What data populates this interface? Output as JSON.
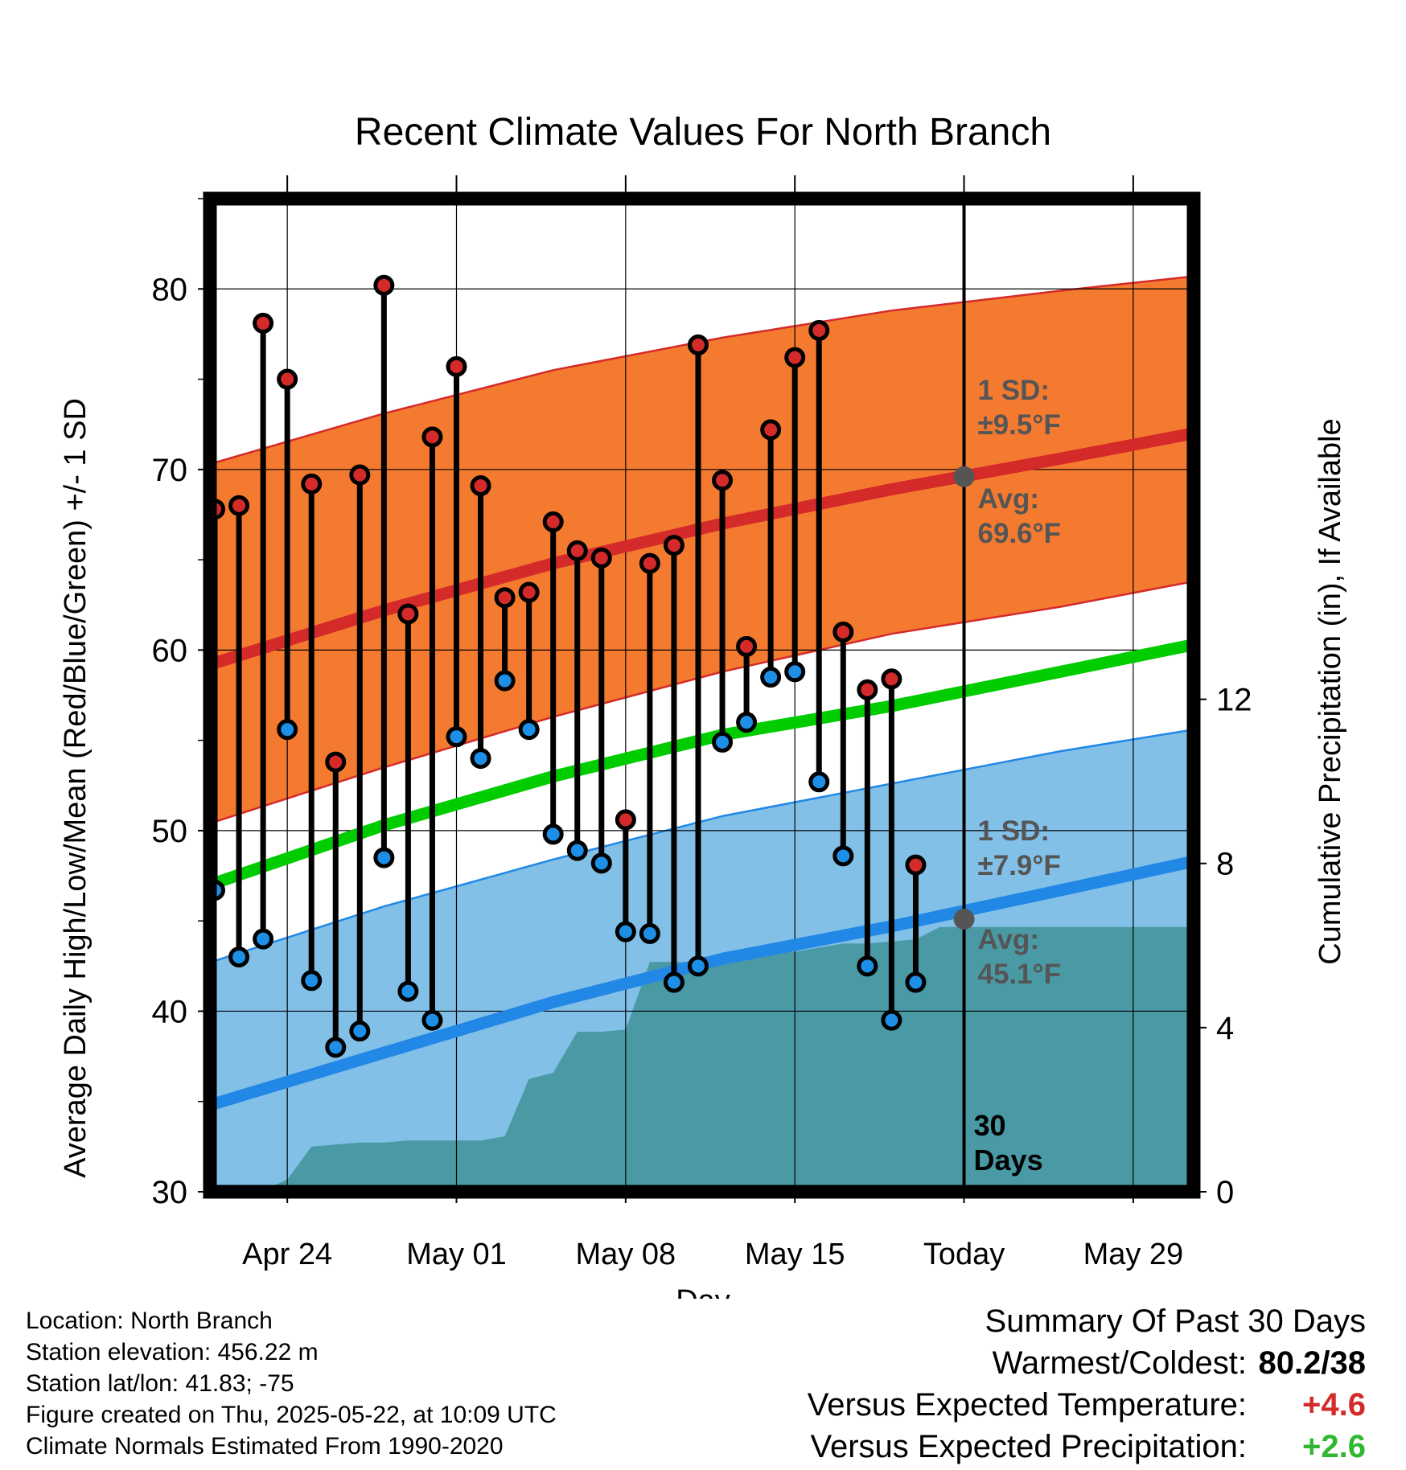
{
  "chart_data": {
    "type": "line",
    "title": "Recent Climate Values For North Branch",
    "xlabel": "Day",
    "ylabel": "Average Daily High/Low/Mean (Red/Blue/Green) +/- 1 SD",
    "ylabel_right": "Cumulative Precipitation (in), If Available",
    "x_ticks": [
      {
        "day": -28,
        "label": "Apr 24"
      },
      {
        "day": -21,
        "label": "May 01"
      },
      {
        "day": -14,
        "label": "May 08"
      },
      {
        "day": -7,
        "label": "May 15"
      },
      {
        "day": 0,
        "label": "Today"
      },
      {
        "day": 7,
        "label": "May 29"
      }
    ],
    "xlim": [
      -31.2,
      9.5
    ],
    "ylim": [
      30,
      85
    ],
    "y_ticks": [
      30,
      40,
      50,
      60,
      70,
      80
    ],
    "y2lim": [
      0,
      24.2
    ],
    "y2_ticks": [
      0,
      4,
      8,
      12
    ],
    "grid": true,
    "colors": {
      "high_band": "#f47a30",
      "high_edge": "#d42a2a",
      "low_band": "#82c0e8",
      "low_edge": "#2288e6",
      "mean": "#00cc00",
      "precip": "#4a9aa5",
      "high_point": "#d42a2a",
      "low_point": "#1e8fe6",
      "annotation": "#555555"
    },
    "normals": {
      "days": [
        -31.2,
        -24,
        -17,
        -10,
        -3,
        4,
        9.5
      ],
      "high_avg": [
        59.2,
        62.2,
        64.8,
        67.0,
        68.9,
        70.6,
        72.0
      ],
      "high_sd_upper": [
        70.3,
        73.1,
        75.5,
        77.3,
        78.8,
        79.9,
        80.7
      ],
      "high_sd_lower": [
        50.4,
        53.5,
        56.3,
        58.8,
        60.9,
        62.4,
        63.8
      ],
      "low_avg": [
        34.8,
        37.7,
        40.5,
        42.9,
        44.7,
        46.7,
        48.3
      ],
      "low_sd_upper": [
        42.7,
        45.8,
        48.4,
        50.8,
        52.6,
        54.4,
        55.6
      ],
      "mean_avg": [
        47.0,
        50.3,
        53.0,
        55.3,
        56.9,
        58.8,
        60.3
      ]
    },
    "days": [
      -31,
      -30,
      -29,
      -28,
      -27,
      -26,
      -25,
      -24,
      -23,
      -22,
      -21,
      -20,
      -19,
      -18,
      -17,
      -16,
      -15,
      -14,
      -13,
      -12,
      -11,
      -10,
      -9,
      -8,
      -7,
      -6,
      -5,
      -4,
      -3,
      -2,
      -1
    ],
    "series": [
      {
        "name": "High",
        "values": [
          67.8,
          68.0,
          78.1,
          75.0,
          69.2,
          53.8,
          69.7,
          80.2,
          62.0,
          71.8,
          75.7,
          69.1,
          62.9,
          63.2,
          67.1,
          65.5,
          65.1,
          50.6,
          64.8,
          65.8,
          76.9,
          69.4,
          60.2,
          72.2,
          76.2,
          77.7,
          61.0,
          57.8,
          58.4,
          48.1,
          null
        ]
      },
      {
        "name": "Low",
        "values": [
          46.7,
          43.0,
          44.0,
          55.6,
          41.7,
          38.0,
          38.9,
          48.5,
          41.1,
          39.5,
          55.2,
          54.0,
          58.3,
          55.6,
          49.8,
          48.9,
          48.2,
          44.4,
          44.3,
          41.6,
          42.5,
          54.9,
          56.0,
          58.5,
          58.8,
          52.7,
          48.6,
          42.5,
          39.5,
          41.6,
          null
        ]
      }
    ],
    "precip": {
      "days": [
        -31.2,
        -29.1,
        -28.0,
        -27.0,
        -26.0,
        -25.0,
        -24.0,
        -23.0,
        -22.0,
        -21.0,
        -20.0,
        -19.0,
        -18.0,
        -17.0,
        -16.0,
        -15.0,
        -14.0,
        -13.0,
        -12.0,
        -11.0,
        -10.0,
        -9.0,
        -8.0,
        -7.0,
        -6.0,
        -5.0,
        -4.0,
        -3.0,
        -2.0,
        -1.0,
        9.5
      ],
      "values": [
        0.0,
        0.0,
        0.3,
        1.1,
        1.15,
        1.2,
        1.2,
        1.25,
        1.25,
        1.25,
        1.25,
        1.35,
        2.75,
        2.9,
        3.9,
        3.9,
        3.95,
        5.6,
        5.6,
        5.6,
        5.7,
        5.75,
        5.85,
        5.85,
        5.95,
        6.05,
        6.05,
        6.1,
        6.15,
        6.45,
        6.45
      ]
    },
    "annotations": {
      "high_sd": "1 SD:",
      "high_sd_val": "±9.5°F",
      "high_avg": "Avg:",
      "high_avg_val": "69.6°F",
      "low_sd": "1 SD:",
      "low_sd_val": "±7.9°F",
      "low_avg": "Avg:",
      "low_avg_val": "45.1°F",
      "days_num": "30",
      "days_word": "Days",
      "today_high_avg": 69.6,
      "today_low_avg": 45.1
    }
  },
  "footer": {
    "location": "Location: North Branch",
    "elevation": "Station elevation: 456.22 m",
    "latlon": "Station lat/lon: 41.83; -75",
    "created": "Figure created on Thu, 2025-05-22, at 10:09 UTC",
    "normals": "Climate Normals Estimated From 1990-2020"
  },
  "summary": {
    "title": "Summary Of Past 30 Days",
    "warmest_label": "Warmest/Coldest:",
    "warmest_value": "80.2/38",
    "temp_label": "Versus Expected Temperature:",
    "temp_value": "+4.6",
    "temp_color": "#d42a2a",
    "precip_label": "Versus Expected Precipitation:",
    "precip_value": "+2.6",
    "precip_color": "#2fb82f"
  }
}
